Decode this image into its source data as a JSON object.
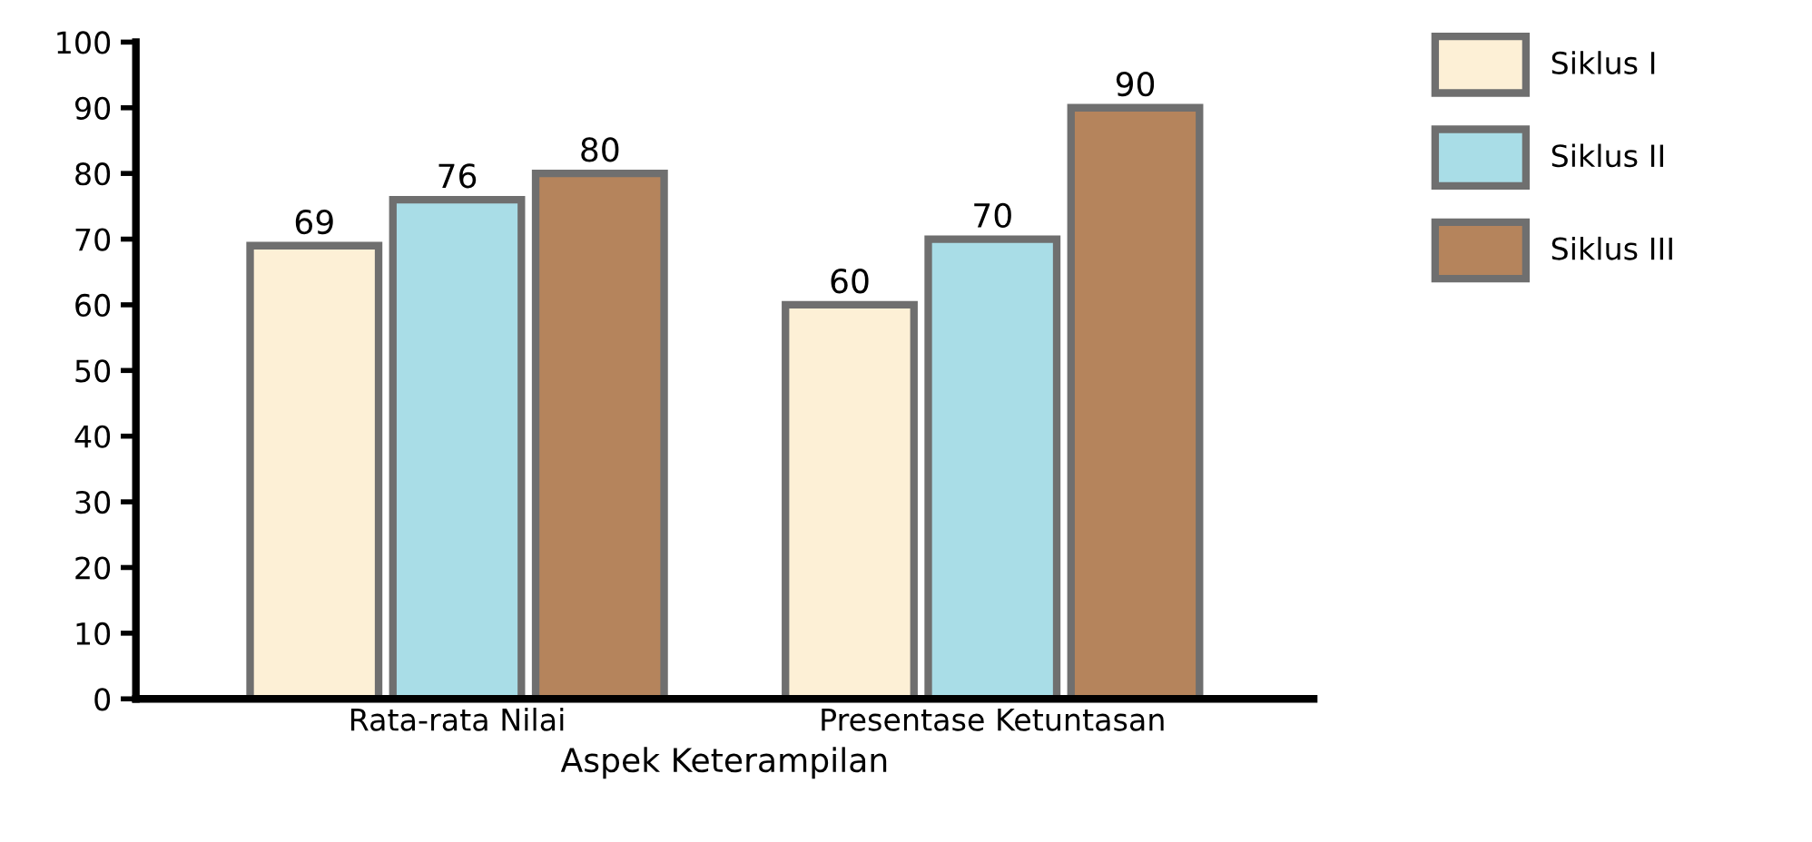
{
  "chart_data": {
    "type": "bar",
    "xlabel": "Aspek Keterampilan",
    "categories": [
      "Rata-rata Nilai",
      "Presentase Ketuntasan"
    ],
    "series": [
      {
        "name": "Siklus I",
        "color": "#fdf0d6",
        "values": [
          69,
          60
        ]
      },
      {
        "name": "Siklus II",
        "color": "#a9dde7",
        "values": [
          76,
          70
        ]
      },
      {
        "name": "Siklus III",
        "color": "#b5845c",
        "values": [
          80,
          90
        ]
      }
    ],
    "ylim": [
      0,
      100
    ],
    "yticks": [
      0,
      10,
      20,
      30,
      40,
      50,
      60,
      70,
      80,
      90,
      100
    ],
    "data_labels": true,
    "grid": false,
    "legend": "top right"
  }
}
